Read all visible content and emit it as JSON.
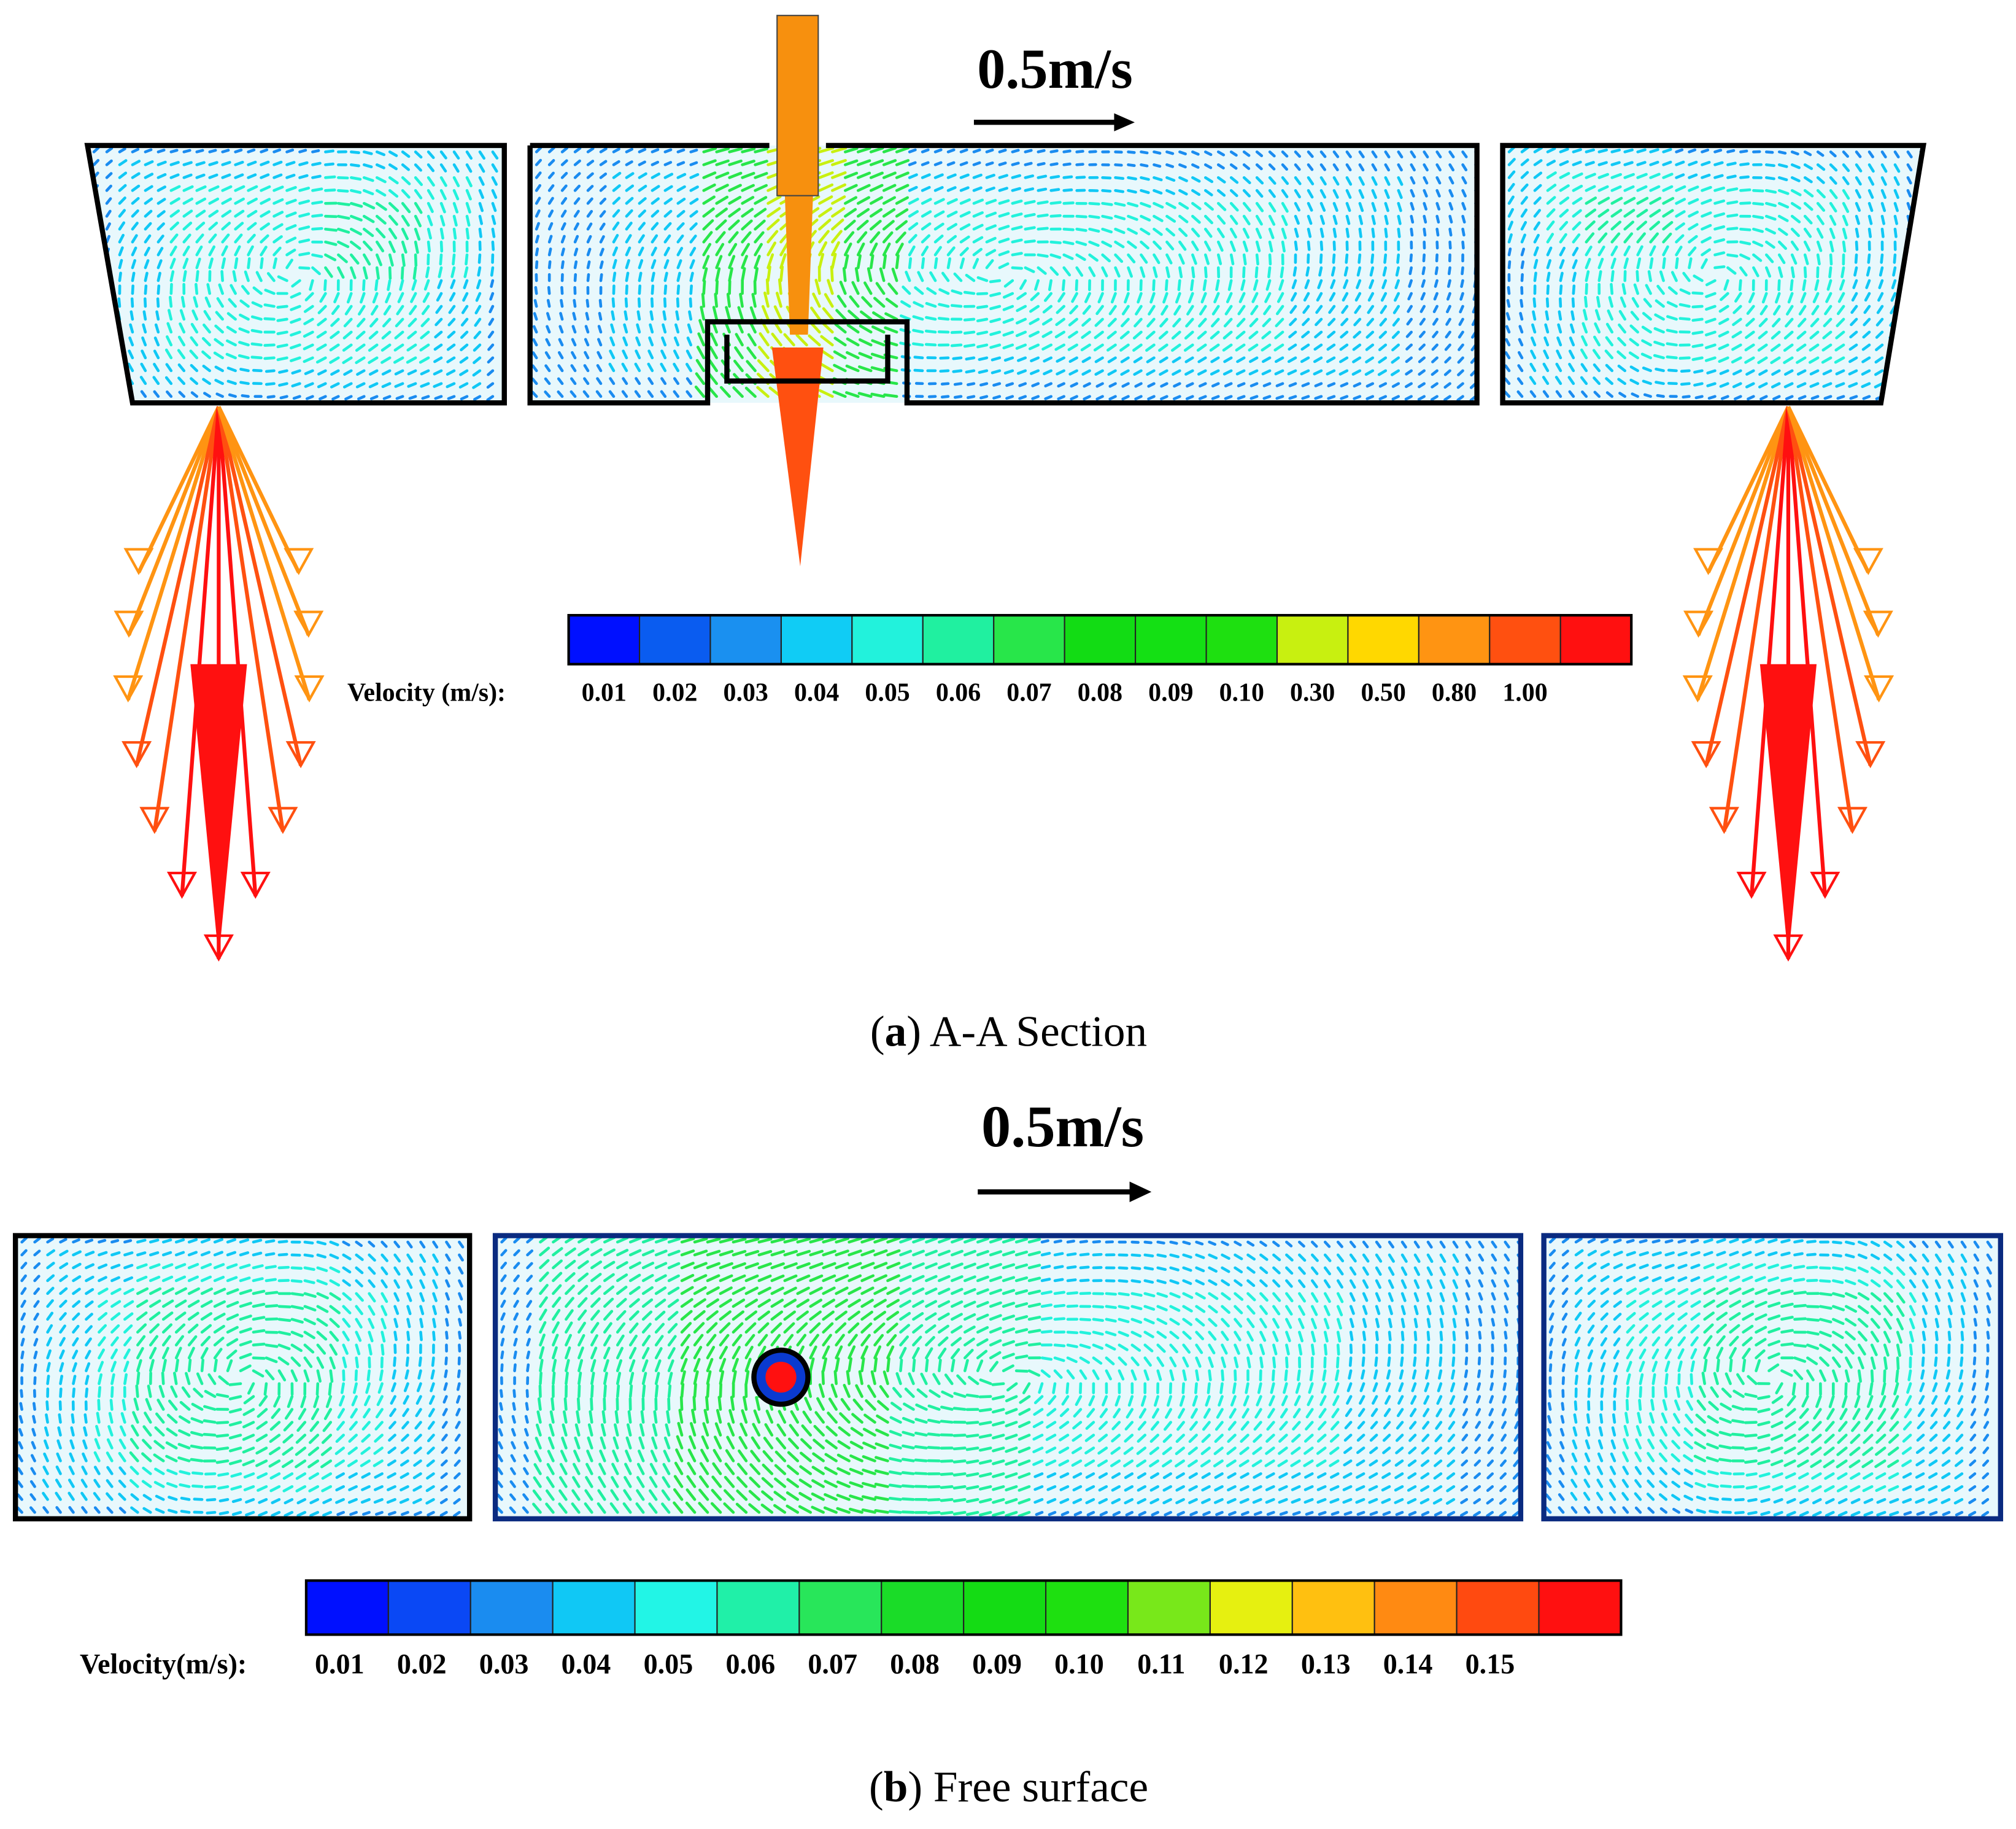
{
  "panels": [
    {
      "scale_label": "0.5m/s",
      "legend": {
        "title": "Velocity (m/s):",
        "labels": [
          "0.01",
          "0.02",
          "0.03",
          "0.04",
          "0.05",
          "0.06",
          "0.07",
          "0.08",
          "0.09",
          "0.10",
          "0.30",
          "0.50",
          "0.80",
          "1.00"
        ],
        "colors": [
          "#0010ff",
          "#0a5cf0",
          "#1a90f0",
          "#10ccf5",
          "#22f2dc",
          "#20f0a0",
          "#28e64a",
          "#12dc14",
          "#14e014",
          "#1ee010",
          "#c8f010",
          "#ffd800",
          "#ff9412",
          "#ff5010",
          "#ff1010"
        ]
      },
      "caption": {
        "open": "(",
        "label": "a",
        "text": ") A-A Section"
      }
    },
    {
      "scale_label": "0.5m/s",
      "legend": {
        "title": "Velocity(m/s):",
        "labels": [
          "0.01",
          "0.02",
          "0.03",
          "0.04",
          "0.05",
          "0.06",
          "0.07",
          "0.08",
          "0.09",
          "0.10",
          "0.11",
          "0.12",
          "0.13",
          "0.14",
          "0.15"
        ],
        "colors": [
          "#0010ff",
          "#0a48f5",
          "#1a8cf0",
          "#10c8f5",
          "#22f5e6",
          "#20f0a8",
          "#28e65a",
          "#1adc28",
          "#14dc14",
          "#1ee010",
          "#78e81a",
          "#e6f010",
          "#ffc010",
          "#ff8a12",
          "#ff4a10",
          "#ff1010"
        ]
      },
      "caption": {
        "open": "(",
        "label": "b",
        "text": ") Free surface"
      }
    }
  ]
}
